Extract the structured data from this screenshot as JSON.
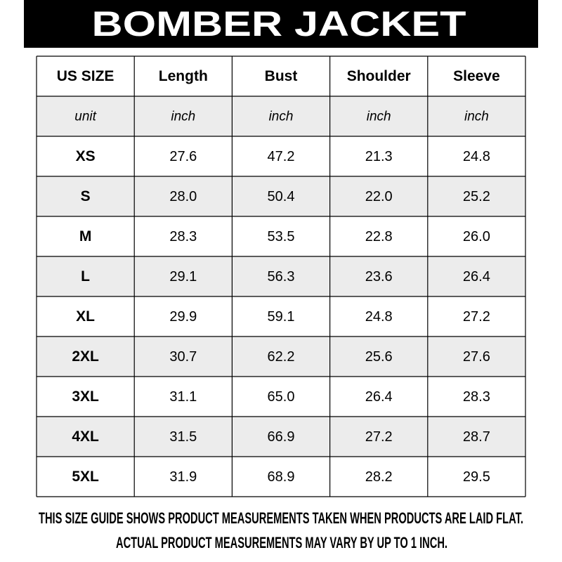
{
  "header": {
    "title": "BOMBER JACKET"
  },
  "table": {
    "columns": [
      "US SIZE",
      "Length",
      "Bust",
      "Shoulder",
      "Sleeve"
    ],
    "units": [
      "unit",
      "inch",
      "inch",
      "inch",
      "inch"
    ],
    "rows": [
      [
        "XS",
        "27.6",
        "47.2",
        "21.3",
        "24.8"
      ],
      [
        "S",
        "28.0",
        "50.4",
        "22.0",
        "25.2"
      ],
      [
        "M",
        "28.3",
        "53.5",
        "22.8",
        "26.0"
      ],
      [
        "L",
        "29.1",
        "56.3",
        "23.6",
        "26.4"
      ],
      [
        "XL",
        "29.9",
        "59.1",
        "24.8",
        "27.2"
      ],
      [
        "2XL",
        "30.7",
        "62.2",
        "25.6",
        "27.6"
      ],
      [
        "3XL",
        "31.1",
        "65.0",
        "26.4",
        "28.3"
      ],
      [
        "4XL",
        "31.5",
        "66.9",
        "27.2",
        "28.7"
      ],
      [
        "5XL",
        "31.9",
        "68.9",
        "28.2",
        "29.5"
      ]
    ]
  },
  "footer": {
    "lines": [
      "THIS SIZE GUIDE SHOWS PRODUCT MEASUREMENTS TAKEN WHEN PRODUCTS ARE LAID FLAT.",
      "ACTUAL PRODUCT MEASUREMENTS MAY VARY BY UP TO 1 INCH."
    ]
  }
}
